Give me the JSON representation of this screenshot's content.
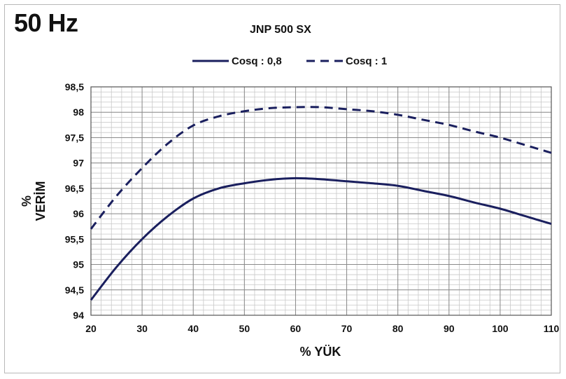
{
  "header": {
    "frequency_label": "50 Hz",
    "model_label": "JNP 500 SX"
  },
  "chart_data": {
    "type": "line",
    "title": "JNP 500 SX",
    "xlabel": "% YÜK",
    "ylabel_top": "%",
    "ylabel": "VERİM",
    "xlim": [
      20,
      110
    ],
    "ylim": [
      94,
      98.5
    ],
    "x_ticks": [
      "20",
      "30",
      "40",
      "50",
      "60",
      "70",
      "80",
      "90",
      "100",
      "110"
    ],
    "y_ticks": [
      "94",
      "94,5",
      "95",
      "95,5",
      "96",
      "96,5",
      "97",
      "97,5",
      "98",
      "98,5"
    ],
    "grid": true,
    "legend_position": "top",
    "x": [
      20,
      25,
      30,
      35,
      40,
      45,
      50,
      55,
      60,
      65,
      70,
      75,
      80,
      85,
      90,
      95,
      100,
      105,
      110
    ],
    "series": [
      {
        "name": "Cosq : 0,8",
        "style": "solid",
        "color": "#1a1f5e",
        "values": [
          94.3,
          94.95,
          95.5,
          95.95,
          96.3,
          96.5,
          96.6,
          96.67,
          96.7,
          96.68,
          96.64,
          96.6,
          96.55,
          96.45,
          96.35,
          96.22,
          96.1,
          95.95,
          95.8
        ]
      },
      {
        "name": "Cosq : 1",
        "style": "dashed",
        "color": "#1a1f5e",
        "values": [
          95.7,
          96.35,
          96.9,
          97.38,
          97.74,
          97.92,
          98.02,
          98.08,
          98.1,
          98.1,
          98.06,
          98.02,
          97.95,
          97.85,
          97.75,
          97.62,
          97.5,
          97.35,
          97.2
        ]
      }
    ]
  }
}
